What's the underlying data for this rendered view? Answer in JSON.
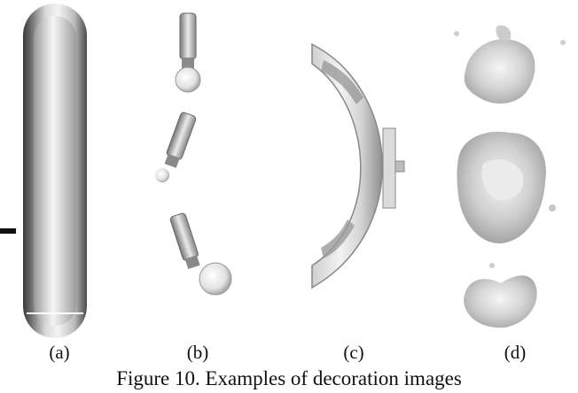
{
  "figure": {
    "caption": "Figure 10. Examples of decoration images",
    "panels": [
      {
        "label": "(a)"
      },
      {
        "label": "(b)"
      },
      {
        "label": "(c)"
      },
      {
        "label": "(d)"
      }
    ]
  }
}
